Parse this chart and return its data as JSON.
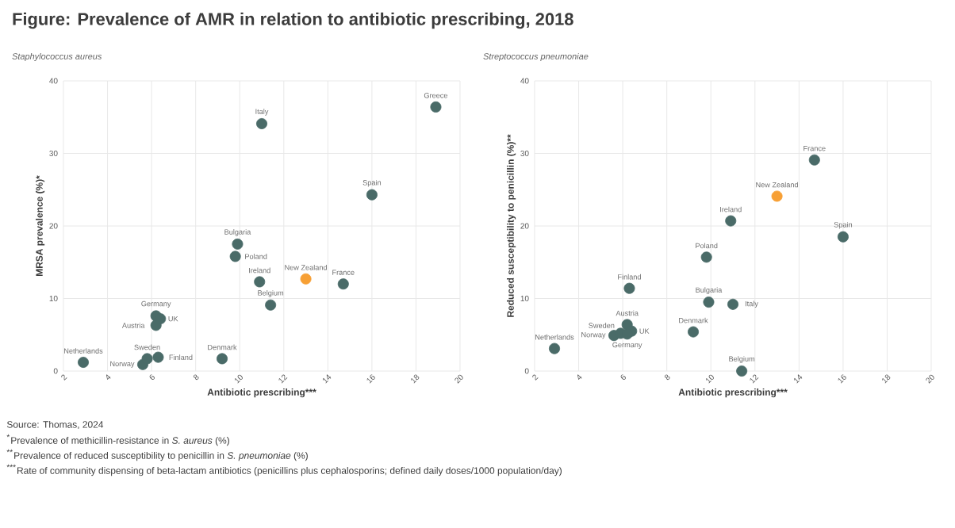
{
  "chart_data": [
    {
      "type": "scatter",
      "title": "Figure: Prevalence of AMR in relation to antibiotic prescribing, 2018",
      "subtitle": "Staphylococcus aureus",
      "xlabel": "Antibiotic prescribing***",
      "ylabel": "MRSA prevalence (%)*",
      "x": [
        2.9,
        5.6,
        5.8,
        6.3,
        6.2,
        6.2,
        6.4,
        9.2,
        11.4,
        10.9,
        13.0,
        14.7,
        9.8,
        9.9,
        11.0,
        18.9,
        16.0
      ],
      "values": [
        1.2,
        0.9,
        1.7,
        1.9,
        6.3,
        7.6,
        7.2,
        1.7,
        9.1,
        12.3,
        12.7,
        12.0,
        15.8,
        17.5,
        34.1,
        36.4,
        24.3
      ],
      "colors": [
        "#4a6b68",
        "#4a6b68",
        "#4a6b68",
        "#4a6b68",
        "#4a6b68",
        "#4a6b68",
        "#4a6b68",
        "#4a6b68",
        "#4a6b68",
        "#4a6b68",
        "#f7a035",
        "#4a6b68",
        "#4a6b68",
        "#4a6b68",
        "#4a6b68",
        "#4a6b68",
        "#4a6b68"
      ],
      "xlim": [
        2,
        20
      ],
      "ylim": [
        0,
        40
      ],
      "xticks": [
        2,
        4,
        6,
        8,
        10,
        12,
        14,
        16,
        18,
        20
      ],
      "yticks": [
        0,
        10,
        20,
        30,
        40
      ],
      "grid": true,
      "annotations": [
        {
          "text": "Netherlands",
          "x": 2.9,
          "y": 1.2
        },
        {
          "text": "Norway",
          "x": 5.6,
          "y": 0.9
        },
        {
          "text": "Sweden",
          "x": 5.8,
          "y": 1.7
        },
        {
          "text": "Finland",
          "x": 6.3,
          "y": 1.9
        },
        {
          "text": "Austria",
          "x": 6.2,
          "y": 6.3
        },
        {
          "text": "Germany",
          "x": 6.2,
          "y": 7.6
        },
        {
          "text": "UK",
          "x": 6.4,
          "y": 7.2
        },
        {
          "text": "Denmark",
          "x": 9.2,
          "y": 1.7
        },
        {
          "text": "Belgium",
          "x": 11.4,
          "y": 9.1
        },
        {
          "text": "Ireland",
          "x": 10.9,
          "y": 12.3
        },
        {
          "text": "New Zealand",
          "x": 13.0,
          "y": 12.7
        },
        {
          "text": "France",
          "x": 14.7,
          "y": 12.0
        },
        {
          "text": "Poland",
          "x": 9.8,
          "y": 15.8
        },
        {
          "text": "Bulgaria",
          "x": 9.9,
          "y": 17.5
        },
        {
          "text": "Italy",
          "x": 11.0,
          "y": 34.1
        },
        {
          "text": "Greece",
          "x": 18.9,
          "y": 36.4
        },
        {
          "text": "Spain",
          "x": 16.0,
          "y": 24.3
        },
        "Source: Thomas, 2024",
        "$^{*}$Prevalence of methicillin-resistance in *S. aureus* (%)",
        "$^{**}$Prevalence of reduced susceptibility to penicillin in *S. pneumoniae* (%)",
        "$^{***}$Rate of community dispensing of beta-lactam antibiotics (penicillins plus cephalosporins; defined daily doses/1000 population/day)"
      ]
    },
    {
      "type": "scatter",
      "subtitle": "Streptococcus pneumoniae",
      "xlabel": "Antibiotic prescribing***",
      "ylabel": "Reduced susceptibility to penicillin (%)**",
      "x": [
        2.9,
        5.6,
        5.9,
        6.2,
        6.4,
        6.2,
        6.3,
        9.2,
        9.9,
        11.0,
        11.4,
        9.8,
        10.9,
        16.0,
        14.7,
        13.0
      ],
      "values": [
        3.1,
        4.9,
        5.2,
        6.4,
        5.5,
        5.1,
        11.4,
        5.4,
        9.5,
        9.2,
        0.0,
        15.7,
        20.7,
        18.5,
        29.1,
        24.1
      ],
      "colors": [
        "#4a6b68",
        "#4a6b68",
        "#4a6b68",
        "#4a6b68",
        "#4a6b68",
        "#4a6b68",
        "#4a6b68",
        "#4a6b68",
        "#4a6b68",
        "#4a6b68",
        "#4a6b68",
        "#4a6b68",
        "#4a6b68",
        "#4a6b68",
        "#4a6b68",
        "#f7a035"
      ],
      "xlim": [
        2,
        20
      ],
      "ylim": [
        0,
        40
      ],
      "xticks": [
        2,
        4,
        6,
        8,
        10,
        12,
        14,
        16,
        18,
        20
      ],
      "yticks": [
        0,
        10,
        20,
        30,
        40
      ],
      "grid": true,
      "annotations": [
        {
          "text": "Netherlands",
          "x": 2.9,
          "y": 3.1
        },
        {
          "text": "Norway",
          "x": 5.6,
          "y": 4.9
        },
        {
          "text": "Sweden",
          "x": 5.9,
          "y": 5.2
        },
        {
          "text": "Austria",
          "x": 6.2,
          "y": 6.4
        },
        {
          "text": "UK",
          "x": 6.4,
          "y": 5.5
        },
        {
          "text": "Germany",
          "x": 6.2,
          "y": 5.1
        },
        {
          "text": "Finland",
          "x": 6.3,
          "y": 11.4
        },
        {
          "text": "Denmark",
          "x": 9.2,
          "y": 5.4
        },
        {
          "text": "Bulgaria",
          "x": 9.9,
          "y": 9.5
        },
        {
          "text": "Italy",
          "x": 11.0,
          "y": 9.2
        },
        {
          "text": "Belgium",
          "x": 11.4,
          "y": 0.0
        },
        {
          "text": "Poland",
          "x": 9.8,
          "y": 15.7
        },
        {
          "text": "Ireland",
          "x": 10.9,
          "y": 20.7
        },
        {
          "text": "Spain",
          "x": 16.0,
          "y": 18.5
        },
        {
          "text": "France",
          "x": 14.7,
          "y": 29.1
        },
        {
          "text": "New Zealand",
          "x": 13.0,
          "y": 24.1
        }
      ]
    }
  ]
}
